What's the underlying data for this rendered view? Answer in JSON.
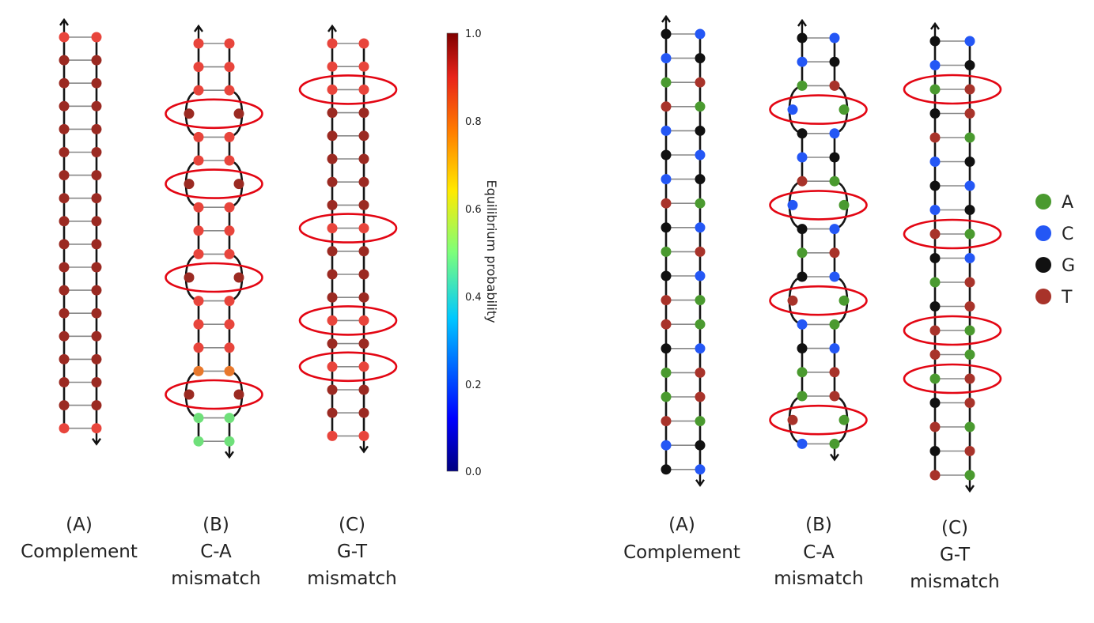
{
  "colorbar": {
    "label": "Equilibrium probability",
    "ticks": [
      "1.0",
      "0.8",
      "0.6",
      "0.4",
      "0.2",
      "0.0"
    ]
  },
  "captions": {
    "A": {
      "letter": "(A)",
      "line1": "Complement",
      "line2": ""
    },
    "B": {
      "letter": "(B)",
      "line1": "C-A",
      "line2": "mismatch"
    },
    "C": {
      "letter": "(C)",
      "line1": "G-T",
      "line2": "mismatch"
    }
  },
  "legend": [
    {
      "base": "A",
      "color": "#4a9a2f"
    },
    {
      "base": "C",
      "color": "#2457f5"
    },
    {
      "base": "G",
      "color": "#111111"
    },
    {
      "base": "T",
      "color": "#a8332a"
    }
  ],
  "colors": {
    "prob_high": "#9b2a22",
    "prob_red": "#e8453c",
    "prob_orange": "#e8782c",
    "prob_green": "#6fe07a",
    "highlight_ring": "#e30613"
  }
}
